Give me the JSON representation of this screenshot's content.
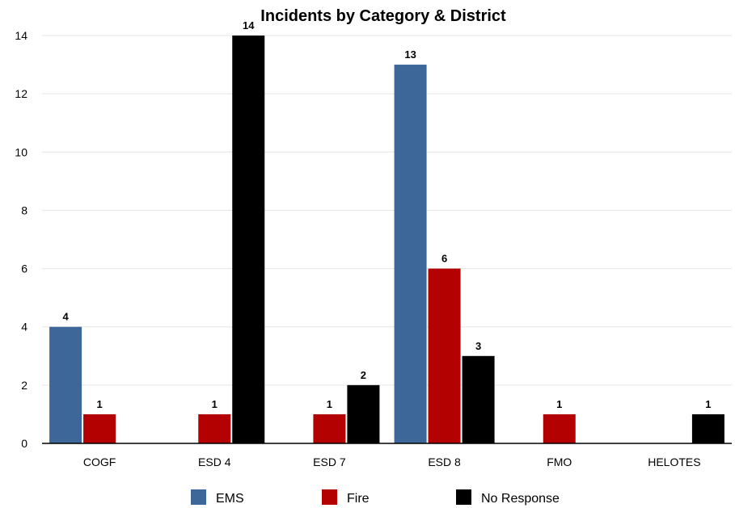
{
  "chart_data": {
    "type": "bar",
    "title": "Incidents by Category & District",
    "xlabel": "",
    "ylabel": "",
    "categories": [
      "COGF",
      "ESD 4",
      "ESD 7",
      "ESD 8",
      "FMO",
      "HELOTES"
    ],
    "series": [
      {
        "name": "EMS",
        "color": "#3d6699",
        "values": [
          4,
          0,
          0,
          13,
          0,
          0
        ]
      },
      {
        "name": "Fire",
        "color": "#b30000",
        "values": [
          1,
          1,
          1,
          6,
          1,
          0
        ]
      },
      {
        "name": "No Response",
        "color": "#000000",
        "values": [
          0,
          14,
          2,
          3,
          0,
          1
        ]
      }
    ],
    "ylim": [
      0,
      14
    ],
    "yticks": [
      0,
      2,
      4,
      6,
      8,
      10,
      12,
      14
    ],
    "grid": true,
    "legend": "bottom",
    "data_labels": true
  }
}
